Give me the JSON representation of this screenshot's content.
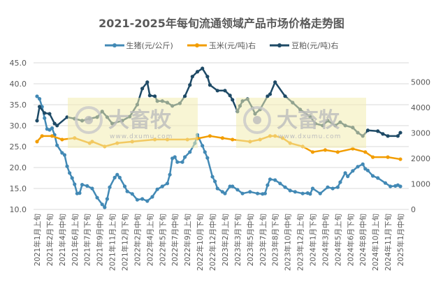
{
  "chart_data": {
    "type": "line",
    "title": "2021-2025年每旬流通领域产品市场价格走势图",
    "x_tick_labels": [
      "2021年1月上旬",
      "2021年2月下旬",
      "2021年4月中旬",
      "2021年6月上旬",
      "2021年7月下旬",
      "2021年9月中旬",
      "2021年11月上旬",
      "2021年12月下旬",
      "2022年2月中旬",
      "2022年4月上旬",
      "2022年5月下旬",
      "2022年7月中旬",
      "2022年9月上旬",
      "2022年10月下旬",
      "2022年12月中旬",
      "2023年2月上旬",
      "2023年3月下旬",
      "2023年5月中旬",
      "2023年7月上旬",
      "2023年8月下旬",
      "2023年10月中旬",
      "2023年12月上旬",
      "2024年1月下旬",
      "2024年3月中旬",
      "2024年5月上旬",
      "2024年6月下旬",
      "2024年8月中旬",
      "2024年10月上旬",
      "2024年11月下旬",
      "2025年1月中旬"
    ],
    "x_range": [
      "2021年1月上旬",
      "2025年1月中旬"
    ],
    "y_left": {
      "ylim": [
        10,
        45
      ],
      "ticks": [
        "10.0",
        "15.0",
        "20.0",
        "25.0",
        "30.0",
        "35.0",
        "40.0",
        "45.0"
      ]
    },
    "y_right": {
      "ylim": [
        0,
        5750
      ],
      "ticks": [
        "0",
        "1000",
        "2000",
        "3000",
        "4000",
        "5000"
      ]
    },
    "grid": true,
    "legend_position": "top",
    "series": [
      {
        "name": "生猪(元/公斤)",
        "axis": "left",
        "color": "#4289b5",
        "points": [
          [
            "2021年1月上旬",
            37.0
          ],
          [
            "2021年1月中旬",
            36.4
          ],
          [
            "2021年1月下旬",
            34.5
          ],
          [
            "2021年2月上旬",
            31.8
          ],
          [
            "2021年2月中旬",
            29.2
          ],
          [
            "2021年2月下旬",
            29.0
          ],
          [
            "2021年3月上旬",
            29.4
          ],
          [
            "2021年3月中旬",
            27.8
          ],
          [
            "2021年3月下旬",
            25.3
          ],
          [
            "2021年4月中旬",
            23.5
          ],
          [
            "2021年4月下旬",
            23.0
          ],
          [
            "2021年5月上旬",
            20.3
          ],
          [
            "2021年5月中旬",
            18.7
          ],
          [
            "2021年5月下旬",
            17.5
          ],
          [
            "2021年6月上旬",
            16.0
          ],
          [
            "2021年6月中旬",
            13.8
          ],
          [
            "2021年6月下旬",
            13.9
          ],
          [
            "2021年7月上旬",
            15.9
          ],
          [
            "2021年7月下旬",
            15.6
          ],
          [
            "2021年8月中旬",
            15.0
          ],
          [
            "2021年9月上旬",
            12.8
          ],
          [
            "2021年9月下旬",
            11.2
          ],
          [
            "2021年10月上旬",
            10.5
          ],
          [
            "2021年10月中旬",
            12.5
          ],
          [
            "2021年10月下旬",
            15.3
          ],
          [
            "2021年11月中旬",
            17.6
          ],
          [
            "2021年11月下旬",
            18.3
          ],
          [
            "2021年12月上旬",
            17.6
          ],
          [
            "2021年12月下旬",
            15.5
          ],
          [
            "2022年1月上旬",
            14.3
          ],
          [
            "2022年1月下旬",
            13.7
          ],
          [
            "2022年2月中旬",
            12.3
          ],
          [
            "2022年3月上旬",
            12.5
          ],
          [
            "2022年3月下旬",
            12.0
          ],
          [
            "2022年4月中旬",
            13.0
          ],
          [
            "2022年5月上旬",
            14.8
          ],
          [
            "2022年5月下旬",
            15.5
          ],
          [
            "2022年6月中旬",
            16.2
          ],
          [
            "2022年6月下旬",
            18.3
          ],
          [
            "2022年7月上旬",
            22.2
          ],
          [
            "2022年7月中旬",
            22.5
          ],
          [
            "2022年7月下旬",
            21.3
          ],
          [
            "2022年8月中旬",
            21.3
          ],
          [
            "2022年8月下旬",
            22.5
          ],
          [
            "2022年9月中旬",
            23.7
          ],
          [
            "2022年10月上旬",
            25.8
          ],
          [
            "2022年10月中旬",
            27.8
          ],
          [
            "2022年11月上旬",
            25.2
          ],
          [
            "2022年11月中旬",
            23.7
          ],
          [
            "2022年11月下旬",
            22.3
          ],
          [
            "2022年12月中旬",
            17.8
          ],
          [
            "2022年12月下旬",
            16.7
          ],
          [
            "2023年1月上旬",
            15.0
          ],
          [
            "2023年1月下旬",
            14.2
          ],
          [
            "2023年2月上旬",
            13.8
          ],
          [
            "2023年2月下旬",
            15.5
          ],
          [
            "2023年3月上旬",
            15.5
          ],
          [
            "2023年3月下旬",
            14.7
          ],
          [
            "2023年4月中旬",
            13.8
          ],
          [
            "2023年5月中旬",
            14.2
          ],
          [
            "2023年6月中旬",
            13.8
          ],
          [
            "2023年7月上旬",
            13.7
          ],
          [
            "2023年7月中旬",
            13.8
          ],
          [
            "2023年7月下旬",
            15.8
          ],
          [
            "2023年8月上旬",
            17.2
          ],
          [
            "2023年8月下旬",
            17.0
          ],
          [
            "2023年9月中旬",
            16.2
          ],
          [
            "2023年10月上旬",
            15.3
          ],
          [
            "2023年10月下旬",
            14.5
          ],
          [
            "2023年11月中旬",
            14.2
          ],
          [
            "2023年12月中旬",
            13.8
          ],
          [
            "2024年1月上旬",
            13.9
          ],
          [
            "2024年1月中旬",
            13.7
          ],
          [
            "2024年1月下旬",
            15.0
          ],
          [
            "2024年2月下旬",
            13.8
          ],
          [
            "2024年3月下旬",
            15.3
          ],
          [
            "2024年4月中旬",
            15.0
          ],
          [
            "2024年5月上旬",
            15.3
          ],
          [
            "2024年5月中旬",
            16.5
          ],
          [
            "2024年6月上旬",
            18.7
          ],
          [
            "2024年6月中旬",
            17.9
          ],
          [
            "2024年7月上旬",
            19.2
          ],
          [
            "2024年7月下旬",
            20.2
          ],
          [
            "2024年8月中旬",
            20.8
          ],
          [
            "2024年8月下旬",
            19.7
          ],
          [
            "2024年9月上旬",
            19.3
          ],
          [
            "2024年9月下旬",
            18.0
          ],
          [
            "2024年10月中旬",
            17.5
          ],
          [
            "2024年11月中旬",
            16.3
          ],
          [
            "2024年12月上旬",
            15.5
          ],
          [
            "2024年12月下旬",
            15.6
          ],
          [
            "2025年1月上旬",
            15.8
          ],
          [
            "2025年1月中旬",
            15.5
          ]
        ]
      },
      {
        "name": "玉米(元/吨)右",
        "axis": "right",
        "color": "#f29d00",
        "points": [
          [
            "2021年1月上旬",
            2660
          ],
          [
            "2021年1月下旬",
            2880
          ],
          [
            "2021年3月上旬",
            2880
          ],
          [
            "2021年4月中旬",
            2740
          ],
          [
            "2021年6月上旬",
            2800
          ],
          [
            "2021年8月上旬",
            2600
          ],
          [
            "2021年8月中旬",
            2660
          ],
          [
            "2021年10月上旬",
            2470
          ],
          [
            "2021年11月下旬",
            2600
          ],
          [
            "2022年1月下旬",
            2660
          ],
          [
            "2022年4月下旬",
            2740
          ],
          [
            "2022年6月中旬",
            2740
          ],
          [
            "2022年9月上旬",
            2740
          ],
          [
            "2022年10月中旬",
            2780
          ],
          [
            "2022年12月上旬",
            2880
          ],
          [
            "2023年1月下旬",
            2800
          ],
          [
            "2023年3月上旬",
            2740
          ],
          [
            "2023年5月中旬",
            2660
          ],
          [
            "2023年6月下旬",
            2740
          ],
          [
            "2023年8月上旬",
            2880
          ],
          [
            "2023年8月下旬",
            2880
          ],
          [
            "2023年9月下旬",
            2800
          ],
          [
            "2023年10月下旬",
            2600
          ],
          [
            "2023年12月中旬",
            2470
          ],
          [
            "2024年1月下旬",
            2250
          ],
          [
            "2024年3月中旬",
            2330
          ],
          [
            "2024年5月上旬",
            2250
          ],
          [
            "2024年7月上旬",
            2380
          ],
          [
            "2024年8月下旬",
            2250
          ],
          [
            "2024年9月下旬",
            2050
          ],
          [
            "2024年11月下旬",
            2050
          ],
          [
            "2025年1月中旬",
            1970
          ]
        ]
      },
      {
        "name": "豆粕(元/吨)右",
        "axis": "right",
        "color": "#1e4a66",
        "points": [
          [
            "2021年1月上旬",
            3480
          ],
          [
            "2021年1月中旬",
            4030
          ],
          [
            "2021年2月上旬",
            3780
          ],
          [
            "2021年2月下旬",
            3750
          ],
          [
            "2021年3月中旬",
            3370
          ],
          [
            "2021年3月下旬",
            3290
          ],
          [
            "2021年5月上旬",
            3620
          ],
          [
            "2021年6月上旬",
            3560
          ],
          [
            "2021年7月上旬",
            3480
          ],
          [
            "2021年8月上旬",
            3560
          ],
          [
            "2021年9月上旬",
            3620
          ],
          [
            "2021年9月下旬",
            3840
          ],
          [
            "2021年10月中旬",
            3620
          ],
          [
            "2021年11月上旬",
            3370
          ],
          [
            "2021年12月中旬",
            3480
          ],
          [
            "2022年1月中旬",
            3640
          ],
          [
            "2022年2月中旬",
            4110
          ],
          [
            "2022年3月上旬",
            4740
          ],
          [
            "2022年3月下旬",
            4990
          ],
          [
            "2022年4月上旬",
            4470
          ],
          [
            "2022年4月下旬",
            4440
          ],
          [
            "2022年5月上旬",
            4250
          ],
          [
            "2022年5月下旬",
            4250
          ],
          [
            "2022年6月中旬",
            4190
          ],
          [
            "2022年7月上旬",
            4060
          ],
          [
            "2022年8月上旬",
            4160
          ],
          [
            "2022年8月下旬",
            4440
          ],
          [
            "2022年9月中旬",
            4880
          ],
          [
            "2022年9月下旬",
            5210
          ],
          [
            "2022年10月中旬",
            5400
          ],
          [
            "2022年11月上旬",
            5530
          ],
          [
            "2022年11月下旬",
            5210
          ],
          [
            "2022年12月上旬",
            4880
          ],
          [
            "2023年1月上旬",
            4660
          ],
          [
            "2023年2月上旬",
            4660
          ],
          [
            "2023年2月下旬",
            4470
          ],
          [
            "2023年3月上旬",
            4300
          ],
          [
            "2023年3月下旬",
            3840
          ],
          [
            "2023年4月上旬",
            4060
          ],
          [
            "2023年4月中旬",
            4250
          ],
          [
            "2023年5月上旬",
            4330
          ],
          [
            "2023年5月下旬",
            3970
          ],
          [
            "2023年6月上旬",
            3750
          ],
          [
            "2023年6月下旬",
            3920
          ],
          [
            "2023年7月下旬",
            4440
          ],
          [
            "2023年8月上旬",
            4520
          ],
          [
            "2023年8月下旬",
            4990
          ],
          [
            "2023年10月上旬",
            4440
          ],
          [
            "2023年11月上旬",
            4190
          ],
          [
            "2023年12月上旬",
            3920
          ],
          [
            "2024年1月中旬",
            3640
          ],
          [
            "2024年2月上旬",
            3370
          ],
          [
            "2024年3月上旬",
            3290
          ],
          [
            "2024年3月下旬",
            3480
          ],
          [
            "2024年4月下旬",
            3290
          ],
          [
            "2024年5月中旬",
            3420
          ],
          [
            "2024年6月上旬",
            3290
          ],
          [
            "2024年7月上旬",
            3210
          ],
          [
            "2024年7月下旬",
            3010
          ],
          [
            "2024年8月中旬",
            2880
          ],
          [
            "2024年9月上旬",
            3100
          ],
          [
            "2024年10月中旬",
            3070
          ],
          [
            "2024年11月上旬",
            2960
          ],
          [
            "2024年11月下旬",
            2880
          ],
          [
            "2025年1月上旬",
            2880
          ],
          [
            "2025年1月中旬",
            3010
          ]
        ]
      }
    ]
  },
  "watermark": {
    "logo_text": "大畜牧",
    "url_text": "www.dxumu.com",
    "box_color": "#f3ecb0"
  }
}
